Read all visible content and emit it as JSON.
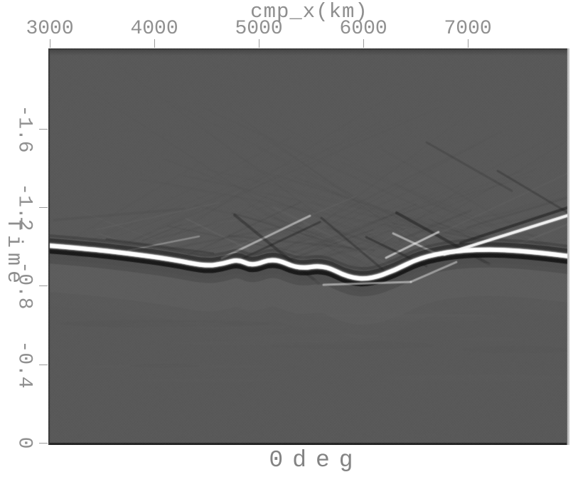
{
  "figure": {
    "background": "#ffffff",
    "axis_tick_color": "#9b9b9b",
    "label_color": "#8e8e8e"
  },
  "chart_data": {
    "type": "heatmap",
    "subtype": "seismic-image-grayscale",
    "title": "0deg",
    "title_position": "bottom",
    "xlabel": "cmp_x(km)",
    "xlabel_position": "top",
    "ylabel": "Time",
    "ylabel_position": "left-rotated",
    "x_ticks": [
      3000,
      4000,
      5000,
      6000,
      7000
    ],
    "y_ticks": [
      -1.6,
      -1.2,
      -0.8,
      -0.4,
      0
    ],
    "xlim": [
      2986,
      7972
    ],
    "ylim_top_to_bottom": [
      -2.01,
      0.011
    ],
    "grid": false,
    "legend": false,
    "zero_gray": "#595959",
    "peak_color": "#ffffff",
    "trough_color": "#101010",
    "light_streak_color": "#6e6e6e",
    "dark_streak_color": "#3f3f3f",
    "main_reflector": [
      [
        2986,
        -1.005
      ],
      [
        3340,
        -0.99
      ],
      [
        3748,
        -0.965
      ],
      [
        4156,
        -0.936
      ],
      [
        4496,
        -0.9
      ],
      [
        4666,
        -0.914
      ],
      [
        4802,
        -0.936
      ],
      [
        4938,
        -0.9
      ],
      [
        5142,
        -0.943
      ],
      [
        5380,
        -0.885
      ],
      [
        5618,
        -0.907
      ],
      [
        5857,
        -0.842
      ],
      [
        6061,
        -0.834
      ],
      [
        6299,
        -0.878
      ],
      [
        6537,
        -0.943
      ],
      [
        6877,
        -0.979
      ],
      [
        7285,
        -0.987
      ],
      [
        7693,
        -0.969
      ],
      [
        7972,
        -0.95
      ]
    ],
    "events": [
      {
        "x1": 6775,
        "t1": -0.961,
        "x2": 7972,
        "t2": -1.161,
        "polarity": "peak",
        "strength": 0.95,
        "w": 4,
        "above": true
      },
      {
        "x1": 6931,
        "t1": -1.019,
        "x2": 7972,
        "t2": -1.201,
        "polarity": "trough",
        "strength": 0.5,
        "w": 4
      },
      {
        "x1": 6319,
        "t1": -1.172,
        "x2": 7203,
        "t2": -0.911,
        "polarity": "trough",
        "strength": 0.45,
        "w": 4
      },
      {
        "x1": 6217,
        "t1": -0.943,
        "x2": 6720,
        "t2": -1.074,
        "polarity": "peak",
        "strength": 0.6,
        "w": 3
      },
      {
        "x1": 6285,
        "t1": -1.067,
        "x2": 6754,
        "t2": -0.951,
        "polarity": "peak",
        "strength": 0.5,
        "w": 3
      },
      {
        "x1": 6027,
        "t1": -1.048,
        "x2": 6605,
        "t2": -0.9,
        "polarity": "trough",
        "strength": 0.4,
        "w": 3
      },
      {
        "x1": 4646,
        "t1": -0.94,
        "x2": 5489,
        "t2": -1.157,
        "polarity": "peak",
        "strength": 0.5,
        "w": 3
      },
      {
        "x1": 4714,
        "t1": -0.907,
        "x2": 5585,
        "t2": -1.125,
        "polarity": "trough",
        "strength": 0.35,
        "w": 3
      },
      {
        "x1": 4768,
        "t1": -1.161,
        "x2": 5571,
        "t2": -0.813,
        "polarity": "trough",
        "strength": 0.35,
        "w": 4
      },
      {
        "x1": 3544,
        "t1": -1.038,
        "x2": 4564,
        "t2": -0.965,
        "polarity": "trough",
        "strength": 0.25,
        "w": 3
      },
      {
        "x1": 5618,
        "t1": -0.805,
        "x2": 6455,
        "t2": -0.82,
        "polarity": "peak",
        "strength": 0.5,
        "w": 3,
        "above": true
      },
      {
        "x1": 6455,
        "t1": -0.82,
        "x2": 6890,
        "t2": -0.921,
        "polarity": "peak",
        "strength": 0.45,
        "w": 3,
        "above": true
      },
      {
        "x1": 5598,
        "t1": -1.146,
        "x2": 6197,
        "t2": -0.878,
        "polarity": "trough",
        "strength": 0.3,
        "w": 3
      },
      {
        "x1": 3748,
        "t1": -0.98,
        "x2": 4428,
        "t2": -1.052,
        "polarity": "peak",
        "strength": 0.3,
        "w": 2.5
      },
      {
        "x1": 7285,
        "t1": -1.386,
        "x2": 7972,
        "t2": -1.168,
        "polarity": "trough",
        "strength": 0.25,
        "w": 3
      },
      {
        "x1": 6605,
        "t1": -1.531,
        "x2": 7421,
        "t2": -1.284,
        "polarity": "trough",
        "strength": 0.18,
        "w": 3
      }
    ],
    "texture": {
      "fan_streaks": 120,
      "near_reflector_streaks": 30,
      "bottom_blobs": 16,
      "dither_amplitude": 1.5,
      "seed": 11
    }
  }
}
